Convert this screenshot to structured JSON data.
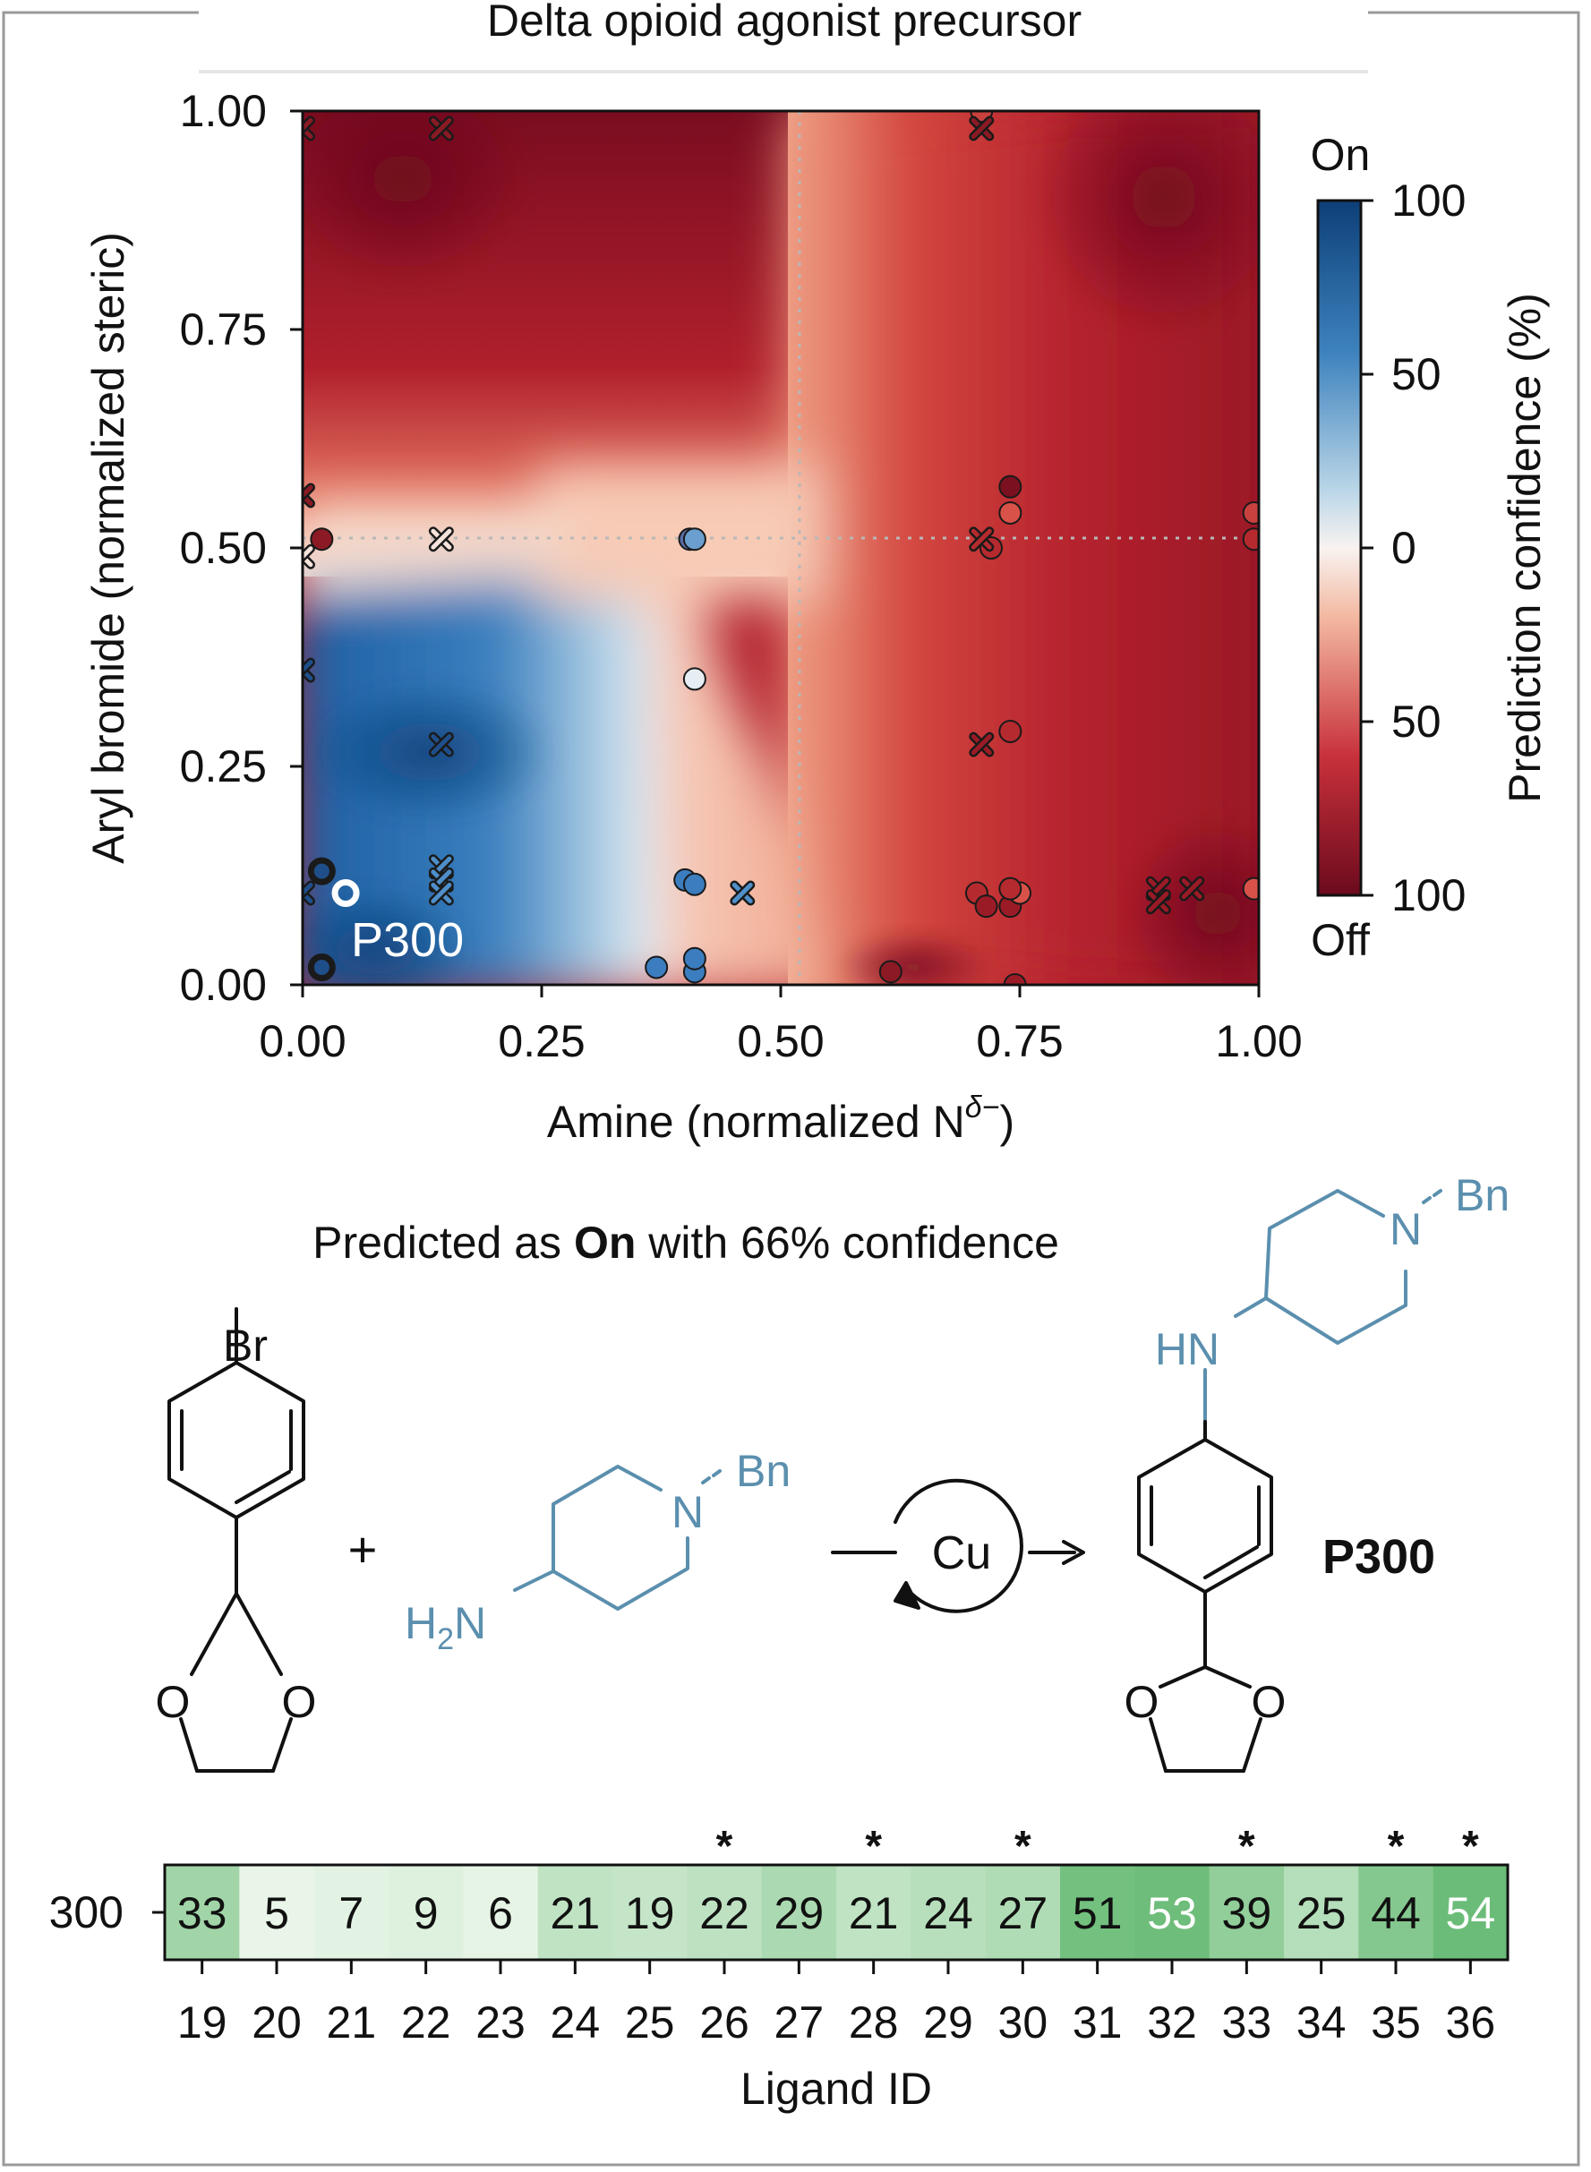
{
  "figure_title": "Delta opioid agonist precursor",
  "prediction_text": {
    "prefix": "Predicted as ",
    "bold": "On",
    "suffix": " with 66% confidence"
  },
  "colors": {
    "on": "#2f6fb0",
    "off": "#7f0a1e",
    "mid": "#fbf3ee",
    "heatmap_low": "#f5fbf3",
    "heatmap_high": "#5cb56a",
    "structure_blue": "#5b8fae"
  },
  "reaction": {
    "aryl_bromide": {
      "halogen": "Br",
      "o_left": "O",
      "o_right": "O"
    },
    "plus": "+",
    "amine": {
      "nh2_main": "H",
      "nh2_sub": "2",
      "nh2_end": "N",
      "ring_n": "N",
      "substituent": "Bn"
    },
    "catalyst": "Cu",
    "product": {
      "hn": "HN",
      "ring_n": "N",
      "substituent": "Bn",
      "o_left": "O",
      "o_right": "O",
      "label": "P300"
    }
  },
  "chart_data": [
    {
      "type": "scatter",
      "title": "Delta opioid agonist precursor",
      "xlabel": "Amine (normalized N^δ−)",
      "xlabel_parts": {
        "main": "Amine (normalized N",
        "sup": "δ−",
        "close": ")"
      },
      "ylabel": "Aryl bromide (normalized steric)",
      "xlim": [
        0,
        1
      ],
      "ylim": [
        0,
        1
      ],
      "xticks": [
        "0.00",
        "0.25",
        "0.50",
        "0.75",
        "1.00"
      ],
      "yticks": [
        "0.00",
        "0.25",
        "0.50",
        "0.75",
        "1.00"
      ],
      "background": "prediction confidence field (blue = On, red = Off)",
      "reference_lines": {
        "x": 0.52,
        "y": 0.51
      },
      "colorbar": {
        "label": "Prediction confidence (%)",
        "top_label": "On",
        "bottom_label": "Off",
        "ticks": [
          "100",
          "50",
          "0",
          "50",
          "100"
        ]
      },
      "highlight": {
        "label": "P300",
        "x": 0.045,
        "y": 0.105
      },
      "points_circle": [
        {
          "x": 0.02,
          "y": 0.51,
          "c": "#8b1a24"
        },
        {
          "x": 0.405,
          "y": 0.51,
          "c": "#5a6ea8"
        },
        {
          "x": 0.41,
          "y": 0.51,
          "c": "#6a9fcf"
        },
        {
          "x": 0.41,
          "y": 0.35,
          "c": "#e6eef4"
        },
        {
          "x": 0.4,
          "y": 0.12,
          "c": "#3b7dbf"
        },
        {
          "x": 0.41,
          "y": 0.115,
          "c": "#3b7dbf"
        },
        {
          "x": 0.37,
          "y": 0.02,
          "c": "#3b7dbf"
        },
        {
          "x": 0.41,
          "y": 0.015,
          "c": "#3b7dbf"
        },
        {
          "x": 0.41,
          "y": 0.03,
          "c": "#3b7dbf"
        },
        {
          "x": 0.02,
          "y": 0.13,
          "c": "#1f4f8a",
          "bold": true
        },
        {
          "x": 0.02,
          "y": 0.02,
          "c": "#1f4f8a",
          "bold": true
        },
        {
          "x": 0.615,
          "y": 0.015,
          "c": "#8b1a24"
        },
        {
          "x": 0.71,
          "y": 1.0,
          "c": "#c9413e"
        },
        {
          "x": 0.74,
          "y": 0.57,
          "c": "#7a1020"
        },
        {
          "x": 0.74,
          "y": 0.54,
          "c": "#d9524a"
        },
        {
          "x": 0.72,
          "y": 0.5,
          "c": "#b52a2e"
        },
        {
          "x": 0.74,
          "y": 0.29,
          "c": "#b52a2e"
        },
        {
          "x": 0.705,
          "y": 0.105,
          "c": "#b52a2e"
        },
        {
          "x": 0.715,
          "y": 0.09,
          "c": "#9a1b26"
        },
        {
          "x": 0.74,
          "y": 0.09,
          "c": "#9a1b26"
        },
        {
          "x": 0.75,
          "y": 0.105,
          "c": "#d9524a"
        },
        {
          "x": 0.74,
          "y": 0.11,
          "c": "#b52a2e"
        },
        {
          "x": 0.995,
          "y": 0.54,
          "c": "#c9413e"
        },
        {
          "x": 0.995,
          "y": 0.51,
          "c": "#b52a2e"
        },
        {
          "x": 0.995,
          "y": 0.11,
          "c": "#d9524a"
        },
        {
          "x": 0.745,
          "y": 0.0,
          "c": "#9a1b26"
        }
      ],
      "points_cross": [
        {
          "x": 0.0,
          "y": 0.98,
          "c": "#8b1a24"
        },
        {
          "x": 0.145,
          "y": 0.98,
          "c": "#8b1a24"
        },
        {
          "x": 0.71,
          "y": 0.98,
          "c": "#8b1a24"
        },
        {
          "x": 0.0,
          "y": 0.56,
          "c": "#8b1a24"
        },
        {
          "x": 0.145,
          "y": 0.51,
          "c": "#f6e4dc"
        },
        {
          "x": 0.0,
          "y": 0.49,
          "c": "#f6e4dc"
        },
        {
          "x": 0.71,
          "y": 0.51,
          "c": "#b52a2e"
        },
        {
          "x": 0.0,
          "y": 0.36,
          "c": "#1f4f8a"
        },
        {
          "x": 0.145,
          "y": 0.275,
          "c": "#1f4f8a"
        },
        {
          "x": 0.71,
          "y": 0.275,
          "c": "#9a1b26"
        },
        {
          "x": 0.145,
          "y": 0.135,
          "c": "#4e8fc9"
        },
        {
          "x": 0.145,
          "y": 0.12,
          "c": "#4e8fc9"
        },
        {
          "x": 0.145,
          "y": 0.105,
          "c": "#4e8fc9"
        },
        {
          "x": 0.0,
          "y": 0.105,
          "c": "#1f4f8a"
        },
        {
          "x": 0.46,
          "y": 0.105,
          "c": "#4e8fc9"
        },
        {
          "x": 0.895,
          "y": 0.11,
          "c": "#9a1b26"
        },
        {
          "x": 0.895,
          "y": 0.095,
          "c": "#9a1b26"
        },
        {
          "x": 0.93,
          "y": 0.11,
          "c": "#9a1b26"
        }
      ]
    },
    {
      "type": "heatmap",
      "row_label": "300",
      "xlabel": "Ligand ID",
      "categories": [
        "19",
        "20",
        "21",
        "22",
        "23",
        "24",
        "25",
        "26",
        "27",
        "28",
        "29",
        "30",
        "31",
        "32",
        "33",
        "34",
        "35",
        "36"
      ],
      "values": [
        33,
        5,
        7,
        9,
        6,
        21,
        19,
        22,
        29,
        21,
        24,
        27,
        51,
        53,
        39,
        25,
        44,
        54
      ],
      "starred": [
        "26",
        "28",
        "30",
        "33",
        "35",
        "36"
      ],
      "star_symbol": "*",
      "vmin": 0,
      "vmax": 60
    }
  ]
}
